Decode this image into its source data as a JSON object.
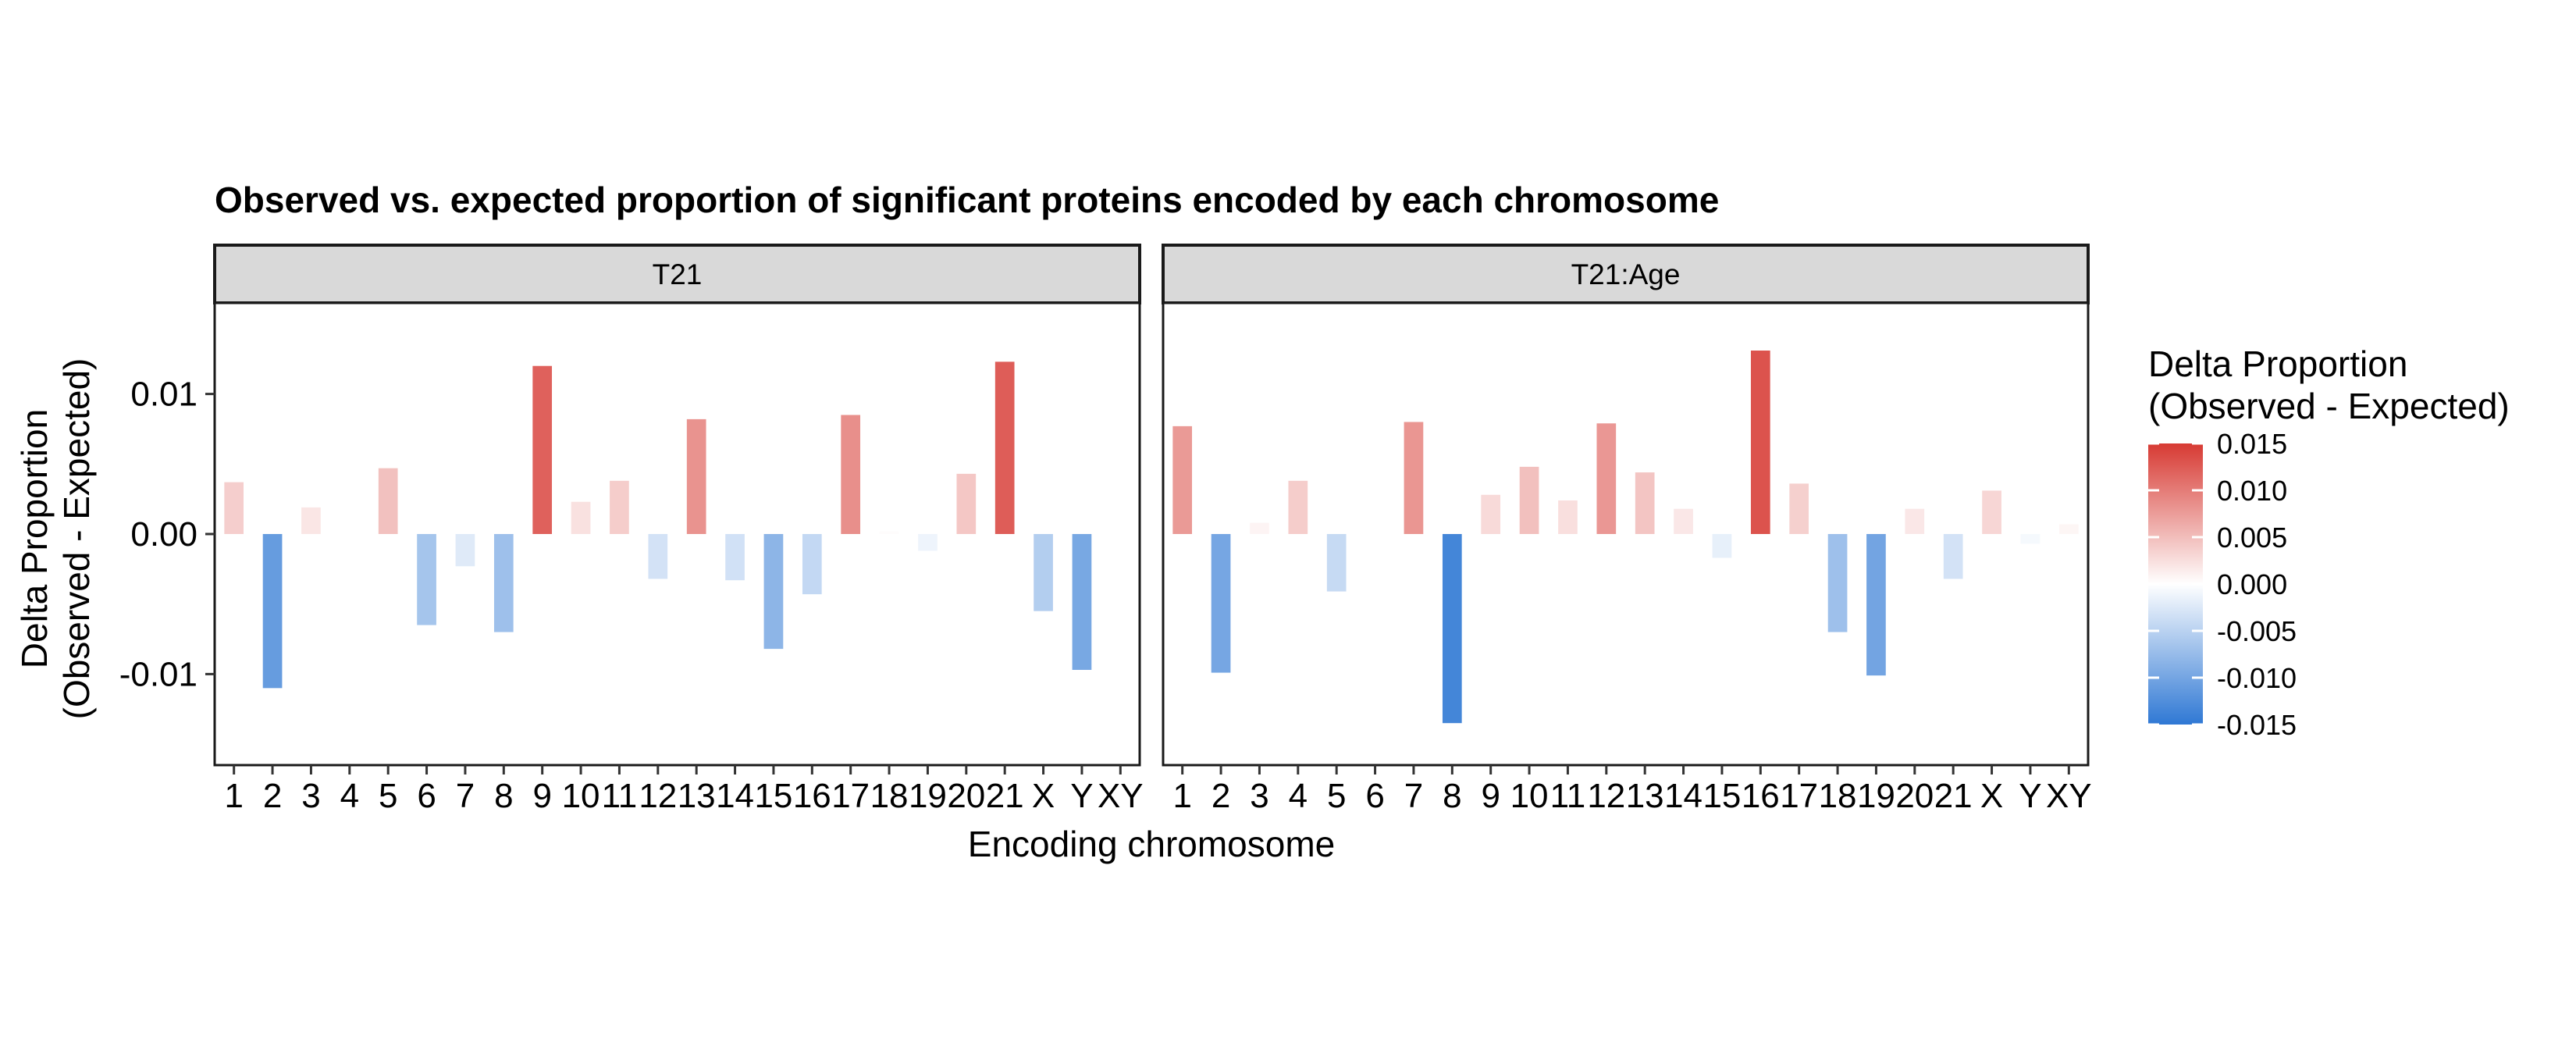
{
  "chart_data": {
    "type": "bar",
    "title": "Observed vs. expected proportion of significant proteins encoded by each chromosome",
    "xlabel": "Encoding chromosome",
    "ylabel": [
      "Delta Proportion",
      "(Observed - Expected)"
    ],
    "ylim": [
      -0.0165,
      0.0165
    ],
    "yticks": [
      -0.01,
      0.0,
      0.01
    ],
    "ytick_labels": [
      "-0.01",
      "0.00",
      "0.01"
    ],
    "grid": false,
    "categories": [
      "1",
      "2",
      "3",
      "4",
      "5",
      "6",
      "7",
      "8",
      "9",
      "10",
      "11",
      "12",
      "13",
      "14",
      "15",
      "16",
      "17",
      "18",
      "19",
      "20",
      "21",
      "X",
      "Y",
      "XY"
    ],
    "facets": [
      {
        "name": "T21",
        "values": [
          0.0037,
          -0.011,
          0.0019,
          0.0,
          0.0047,
          -0.0065,
          -0.0023,
          -0.007,
          0.012,
          0.0023,
          0.0038,
          -0.0032,
          0.0082,
          -0.0033,
          -0.0082,
          -0.0043,
          0.0085,
          0.0002,
          -0.0012,
          0.0043,
          0.0123,
          -0.0055,
          -0.0097,
          0.0
        ]
      },
      {
        "name": "T21:Age",
        "values": [
          0.0077,
          -0.0099,
          0.0008,
          0.0038,
          -0.0041,
          0.0,
          0.008,
          -0.0135,
          0.0028,
          0.0048,
          0.0024,
          0.0079,
          0.0044,
          0.0018,
          -0.0017,
          0.0131,
          0.0036,
          -0.007,
          -0.0101,
          0.0018,
          -0.0032,
          0.0031,
          -0.0007,
          0.0007
        ]
      }
    ],
    "legend": {
      "title": [
        "Delta Proportion",
        "(Observed - Expected)"
      ],
      "placement": "right",
      "range": [
        -0.015,
        0.015
      ],
      "breaks": [
        0.015,
        0.01,
        0.005,
        0.0,
        -0.005,
        -0.01,
        -0.015
      ],
      "break_labels": [
        "0.015",
        "0.010",
        "0.005",
        "0.000",
        "-0.005",
        "-0.010",
        "-0.015"
      ]
    },
    "colors": {
      "low": "#2F78D4",
      "mid": "#FFFFFF",
      "high": "#D73A33",
      "strip_fill": "#D9D9D9"
    }
  }
}
